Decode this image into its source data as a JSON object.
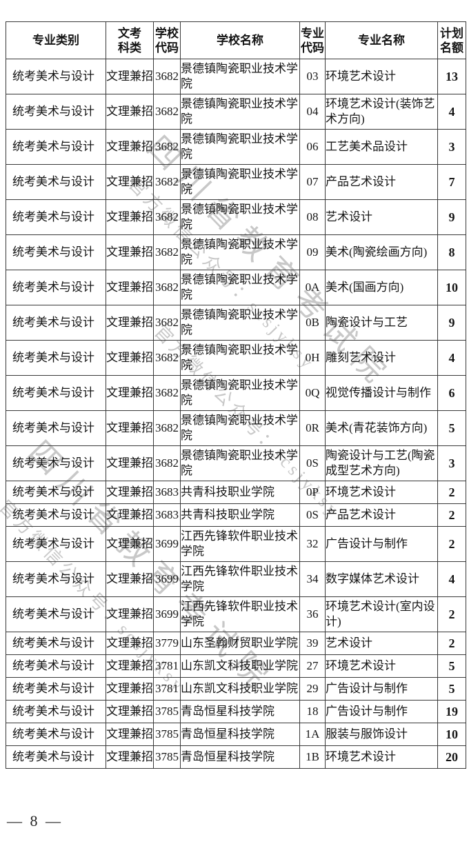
{
  "page": {
    "number_label": "— 8 —"
  },
  "watermark": {
    "main_text": "四川省教育考试院",
    "sub_text": "官方微信公众号：scsjyksy",
    "color": "#bfbfbf"
  },
  "table": {
    "header_rows": [
      [
        "专业类别"
      ],
      [
        "文考",
        "科类"
      ],
      [
        "学校",
        "代码"
      ],
      [
        "学校名称"
      ],
      [
        "专业",
        "代码"
      ],
      [
        "专业名称"
      ],
      [
        "计划",
        "名额"
      ]
    ],
    "rows": [
      [
        "统考美术与设计",
        "文理兼招",
        "3682",
        "景德镇陶瓷职业技术学院",
        "03",
        "环境艺术设计",
        "13"
      ],
      [
        "统考美术与设计",
        "文理兼招",
        "3682",
        "景德镇陶瓷职业技术学院",
        "04",
        "环境艺术设计(装饰艺术方向)",
        "4"
      ],
      [
        "统考美术与设计",
        "文理兼招",
        "3682",
        "景德镇陶瓷职业技术学院",
        "06",
        "工艺美术品设计",
        "3"
      ],
      [
        "统考美术与设计",
        "文理兼招",
        "3682",
        "景德镇陶瓷职业技术学院",
        "07",
        "产品艺术设计",
        "7"
      ],
      [
        "统考美术与设计",
        "文理兼招",
        "3682",
        "景德镇陶瓷职业技术学院",
        "08",
        "艺术设计",
        "9"
      ],
      [
        "统考美术与设计",
        "文理兼招",
        "3682",
        "景德镇陶瓷职业技术学院",
        "09",
        "美术(陶瓷绘画方向)",
        "8"
      ],
      [
        "统考美术与设计",
        "文理兼招",
        "3682",
        "景德镇陶瓷职业技术学院",
        "0A",
        "美术(国画方向)",
        "10"
      ],
      [
        "统考美术与设计",
        "文理兼招",
        "3682",
        "景德镇陶瓷职业技术学院",
        "0B",
        "陶瓷设计与工艺",
        "9"
      ],
      [
        "统考美术与设计",
        "文理兼招",
        "3682",
        "景德镇陶瓷职业技术学院",
        "0H",
        "雕刻艺术设计",
        "4"
      ],
      [
        "统考美术与设计",
        "文理兼招",
        "3682",
        "景德镇陶瓷职业技术学院",
        "0Q",
        "视觉传播设计与制作",
        "6"
      ],
      [
        "统考美术与设计",
        "文理兼招",
        "3682",
        "景德镇陶瓷职业技术学院",
        "0R",
        "美术(青花装饰方向)",
        "5"
      ],
      [
        "统考美术与设计",
        "文理兼招",
        "3682",
        "景德镇陶瓷职业技术学院",
        "0S",
        "陶瓷设计与工艺(陶瓷成型艺术方向)",
        "3"
      ],
      [
        "统考美术与设计",
        "文理兼招",
        "3683",
        "共青科技职业学院",
        "0P",
        "环境艺术设计",
        "2"
      ],
      [
        "统考美术与设计",
        "文理兼招",
        "3683",
        "共青科技职业学院",
        "0S",
        "产品艺术设计",
        "2"
      ],
      [
        "统考美术与设计",
        "文理兼招",
        "3699",
        "江西先锋软件职业技术学院",
        "32",
        "广告设计与制作",
        "2"
      ],
      [
        "统考美术与设计",
        "文理兼招",
        "3699",
        "江西先锋软件职业技术学院",
        "34",
        "数字媒体艺术设计",
        "4"
      ],
      [
        "统考美术与设计",
        "文理兼招",
        "3699",
        "江西先锋软件职业技术学院",
        "36",
        "环境艺术设计(室内设计)",
        "2"
      ],
      [
        "统考美术与设计",
        "文理兼招",
        "3779",
        "山东圣翰财贸职业学院",
        "39",
        "艺术设计",
        "2"
      ],
      [
        "统考美术与设计",
        "文理兼招",
        "3781",
        "山东凯文科技职业学院",
        "27",
        "环境艺术设计",
        "5"
      ],
      [
        "统考美术与设计",
        "文理兼招",
        "3781",
        "山东凯文科技职业学院",
        "29",
        "广告设计与制作",
        "5"
      ],
      [
        "统考美术与设计",
        "文理兼招",
        "3785",
        "青岛恒星科技学院",
        "18",
        "广告设计与制作",
        "19"
      ],
      [
        "统考美术与设计",
        "文理兼招",
        "3785",
        "青岛恒星科技学院",
        "1A",
        "服装与服饰设计",
        "10"
      ],
      [
        "统考美术与设计",
        "文理兼招",
        "3785",
        "青岛恒星科技学院",
        "1B",
        "环境艺术设计",
        "20"
      ]
    ]
  }
}
